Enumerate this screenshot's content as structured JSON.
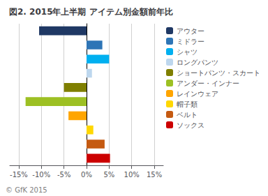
{
  "chart_data": {
    "type": "bar",
    "orientation": "horizontal",
    "title": "図2. 2015年上半期 アイテム別金額前年比",
    "footnote": "© GfK 2015",
    "categories": [
      "アウター",
      "ミドラー",
      "シャツ",
      "ロングパンツ",
      "ショートパンツ・スカート",
      "アンダー・インナー",
      "レインウェア",
      "帽子類",
      "ベルト",
      "ソックス"
    ],
    "values": [
      -10.5,
      3.5,
      5.0,
      1.2,
      -5.0,
      -13.5,
      -4.0,
      1.5,
      4.0,
      5.2
    ],
    "colors": [
      "#1f3864",
      "#2e75b6",
      "#00b0f0",
      "#bdd7ee",
      "#7f7f00",
      "#9dc023",
      "#ffa500",
      "#ffd700",
      "#c55a11",
      "#cc0000"
    ],
    "xlim": [
      -17,
      17
    ],
    "xticks": [
      {
        "value": -15,
        "label": "-15%"
      },
      {
        "value": -10,
        "label": "-10%"
      },
      {
        "value": -5,
        "label": "-5%"
      },
      {
        "value": 0,
        "label": "0%"
      },
      {
        "value": 5,
        "label": "5%"
      },
      {
        "value": 10,
        "label": "10%"
      },
      {
        "value": 15,
        "label": "15%"
      }
    ],
    "grid": true,
    "legend": "right",
    "tick_labels": "x"
  }
}
